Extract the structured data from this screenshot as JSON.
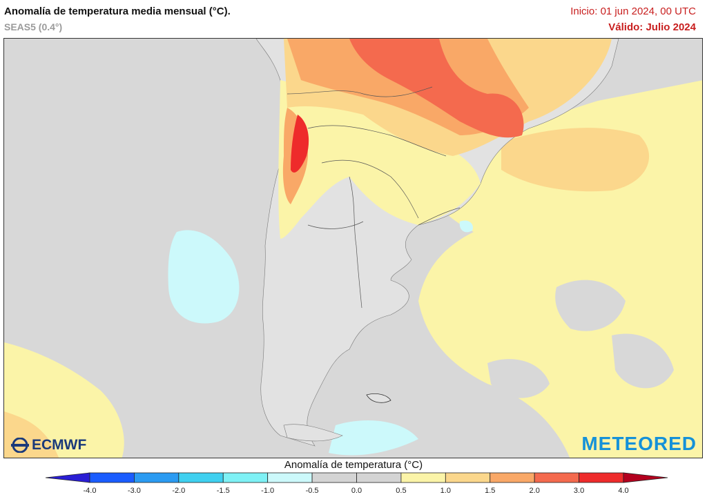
{
  "header": {
    "title": "Anomalía de temperatura media mensual (°C).",
    "subtitle": "SEAS5 (0.4°)",
    "init": "Inicio: 01 jun 2024, 00 UTC",
    "valid": "Válido: Julio 2024"
  },
  "logos": {
    "left": "ECMWF",
    "right": "METEORED"
  },
  "colorbar": {
    "title": "Anomalía de temperatura (°C)",
    "ticks": [
      "-4.0",
      "-3.0",
      "-2.0",
      "-1.5",
      "-1.0",
      "-0.5",
      "0.0",
      "0.5",
      "1.0",
      "1.5",
      "2.0",
      "3.0",
      "4.0"
    ],
    "colors": [
      "#1a5cff",
      "#2b9bf2",
      "#3fd0f0",
      "#7ef1f5",
      "#ccf9fb",
      "#d4d4d4",
      "#d4d4d4",
      "#fbf4a8",
      "#fbd78c",
      "#f9a867",
      "#f46a4e",
      "#ee2b2b"
    ],
    "low_color": "#2a1ed4",
    "high_color": "#b3001e"
  },
  "colors": {
    "ocean_neutral": "#d8d8d8",
    "land": "#e2e2e2",
    "pale_yellow": "#fbf4a8",
    "light_orange": "#fbd78c",
    "orange": "#f9a867",
    "red_orange": "#f46a4e",
    "red": "#ee2b2b",
    "light_cyan": "#ccf9fb"
  }
}
